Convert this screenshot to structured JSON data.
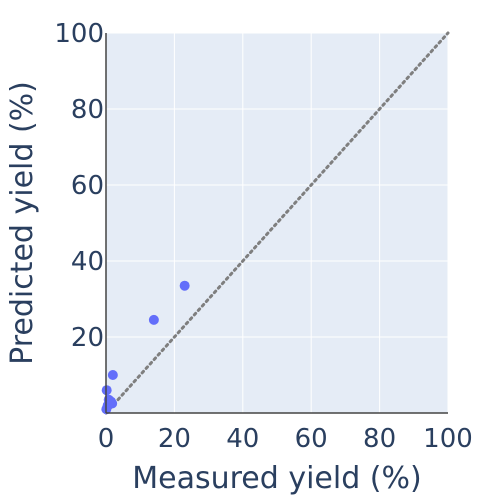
{
  "chart_data": {
    "type": "scatter",
    "title": "",
    "xlabel": "Measured yield (%)",
    "ylabel": "Predicted yield (%)",
    "xlim": [
      0,
      100
    ],
    "ylim": [
      0,
      100
    ],
    "x_ticks": [
      0,
      20,
      40,
      60,
      80,
      100
    ],
    "y_ticks": [
      20,
      40,
      60,
      80,
      100
    ],
    "x_tick_labels": [
      "0",
      "20",
      "40",
      "60",
      "80",
      "100"
    ],
    "y_tick_labels": [
      "20",
      "40",
      "60",
      "80",
      "100"
    ],
    "grid": true,
    "reference_line": {
      "style": "dotted",
      "from": [
        0,
        0
      ],
      "to": [
        100,
        100
      ]
    },
    "series": [
      {
        "points": [
          {
            "x": 0.1,
            "y": 1.0
          },
          {
            "x": 0.2,
            "y": 6.0
          },
          {
            "x": 0.5,
            "y": 2.0
          },
          {
            "x": 0.8,
            "y": 3.5
          },
          {
            "x": 1.5,
            "y": 3.0
          },
          {
            "x": 1.8,
            "y": 2.5
          },
          {
            "x": 2.0,
            "y": 10.0
          },
          {
            "x": 14.0,
            "y": 24.5
          },
          {
            "x": 23.0,
            "y": 33.5
          }
        ]
      }
    ],
    "colors": {
      "plot_background": "#e5ecf6",
      "grid": "#ffffff",
      "axis_line": "#444444",
      "text": "#2a3f5f",
      "marker": "#636efa",
      "reference_line": "#7f7f7f"
    }
  }
}
